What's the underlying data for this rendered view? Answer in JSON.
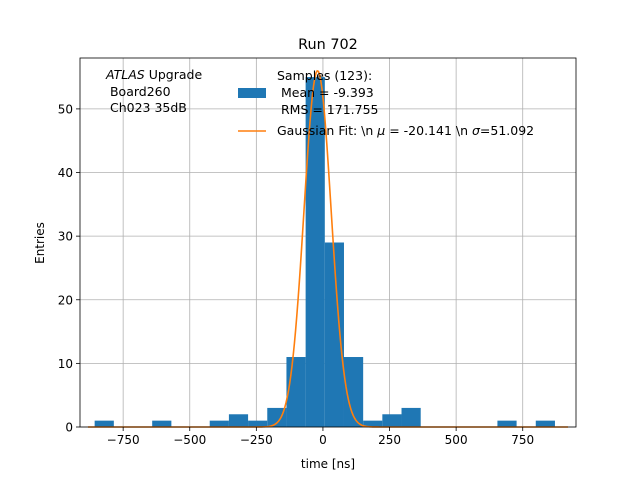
{
  "chart_data": {
    "type": "bar",
    "title": "Run 702",
    "xlabel": "time [ns]",
    "ylabel": "Entries",
    "xlim": [
      -912,
      950
    ],
    "ylim": [
      0,
      58
    ],
    "grid": true,
    "xticks": [
      -750,
      -500,
      -250,
      0,
      250,
      500,
      750
    ],
    "xtick_labels": [
      "−750",
      "−500",
      "−250",
      "0",
      "250",
      "500",
      "750"
    ],
    "yticks": [
      0,
      10,
      20,
      30,
      40,
      50
    ],
    "ytick_labels": [
      "0",
      "10",
      "20",
      "30",
      "40",
      "50"
    ],
    "bin_width": 72,
    "bins": [
      {
        "x0": -857,
        "count": 1
      },
      {
        "x0": -641,
        "count": 1
      },
      {
        "x0": -425,
        "count": 1
      },
      {
        "x0": -353,
        "count": 2
      },
      {
        "x0": -281,
        "count": 1
      },
      {
        "x0": -209,
        "count": 3
      },
      {
        "x0": -137,
        "count": 11
      },
      {
        "x0": -65,
        "count": 55
      },
      {
        "x0": 7,
        "count": 29
      },
      {
        "x0": 79,
        "count": 11
      },
      {
        "x0": 151,
        "count": 1
      },
      {
        "x0": 223,
        "count": 2
      },
      {
        "x0": 295,
        "count": 3
      },
      {
        "x0": 655,
        "count": 1
      },
      {
        "x0": 799,
        "count": 1
      }
    ],
    "fit": {
      "type": "gaussian",
      "mu": -20.141,
      "sigma": 51.092,
      "amplitude": 56
    },
    "annotation": {
      "atlas_italic": "ATLAS",
      "atlas_rest": " Upgrade",
      "line2": " Board260",
      "line3": " Ch023 35dB"
    },
    "legend": {
      "placement": "top-right",
      "hist_label_lines": [
        "Samples (123):",
        " Mean = -9.393",
        " RMS = 171.755"
      ],
      "fit_label": {
        "pre": "Gaussian Fit: \\n ",
        "mu_sym": "μ",
        "mu_val": " = -20.141 \\n ",
        "sigma_sym": "σ",
        "sigma_val": "=51.092"
      }
    },
    "colors": {
      "hist": "#1f77b4",
      "fit": "#ff7f0e",
      "grid": "#b0b0b0"
    }
  }
}
